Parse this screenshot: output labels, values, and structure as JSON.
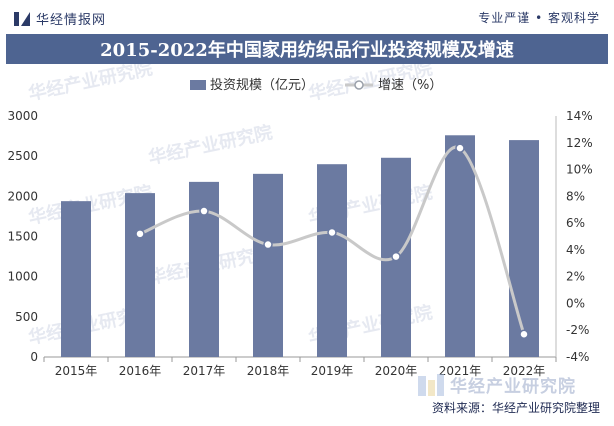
{
  "header": {
    "logo_text": "华经情报网",
    "tagline": "专业严谨 • 客观科学"
  },
  "title": "2015-2022年中国家用纺织品行业投资规模及增速",
  "source": "资料来源：华经产业研究院整理",
  "watermark": "华经产业研究院",
  "colors": {
    "bar": "#6b7aa1",
    "line": "#c9c9c9",
    "title_bg": "#4e6491",
    "marker_stroke": "#6b7aa1"
  },
  "chart_data": {
    "type": "bar",
    "categories": [
      "2015年",
      "2016年",
      "2017年",
      "2018年",
      "2019年",
      "2020年",
      "2021年",
      "2022年"
    ],
    "series": [
      {
        "name": "投资规模（亿元）",
        "type": "bar",
        "axis": "left",
        "values": [
          1940,
          2040,
          2180,
          2280,
          2400,
          2480,
          2760,
          2700
        ]
      },
      {
        "name": "增速（%）",
        "type": "line",
        "axis": "right",
        "values": [
          null,
          5.2,
          6.9,
          4.4,
          5.3,
          3.5,
          11.6,
          -2.3
        ]
      }
    ],
    "ylim_left": [
      0,
      3000
    ],
    "yticks_left": [
      0,
      500,
      1000,
      1500,
      2000,
      2500,
      3000
    ],
    "ylim_right": [
      -4,
      14
    ],
    "yticks_right": [
      "-4%",
      "-2%",
      "0%",
      "2%",
      "4%",
      "6%",
      "8%",
      "10%",
      "12%",
      "14%"
    ],
    "legend_position": "top-center",
    "grid": false
  }
}
